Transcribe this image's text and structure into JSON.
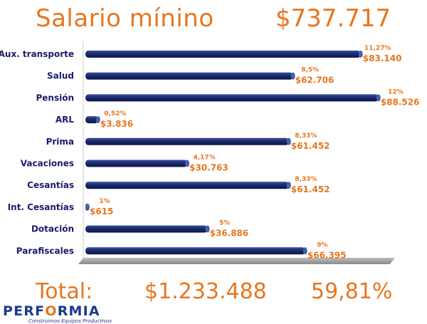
{
  "header": {
    "title": "Salario mínino",
    "amount": "$737.717"
  },
  "chart_data": {
    "type": "bar",
    "orientation": "horizontal",
    "categories": [
      "Aux. transporte",
      "Salud",
      "Pensión",
      "ARL",
      "Prima",
      "Vacaciones",
      "Cesantías",
      "Int. Cesantías",
      "Dotación",
      "Parafiscales"
    ],
    "values": [
      83140,
      62706,
      88526,
      3836,
      61452,
      30763,
      61452,
      615,
      36886,
      66395
    ],
    "value_labels": [
      "$83.140",
      "$62.706",
      "$88.526",
      "$3.836",
      "$61.452",
      "$30.763",
      "$61.452",
      "$615",
      "$36.886",
      "$66.395"
    ],
    "percent_labels": [
      "11,27%",
      "8,5%",
      "12%",
      "0,52%",
      "8,33%",
      "4,17%",
      "8,33%",
      "1%",
      "5%",
      "9%"
    ],
    "xlim": [
      0,
      92000
    ],
    "grid": false,
    "bar_color": "#1a2a6e"
  },
  "totals": {
    "label": "Total:",
    "amount": "$1.233.488",
    "percent": "59,81%"
  },
  "logo": {
    "name_part1": "PERF",
    "name_dot": "O",
    "name_part2": "RMIA",
    "tagline": "Construimos Equipos Productivos"
  },
  "colors": {
    "accent": "#e8761e",
    "bar": "#1a2a6e",
    "label": "#1a1a6e"
  }
}
